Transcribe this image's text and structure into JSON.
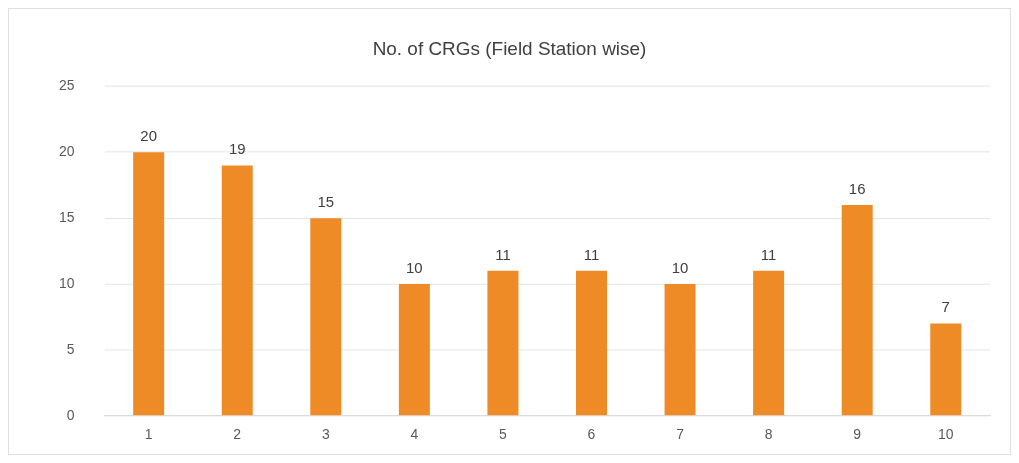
{
  "chart_data": {
    "type": "bar",
    "title": "No. of CRGs (Field Station wise)",
    "categories": [
      "1",
      "2",
      "3",
      "4",
      "5",
      "6",
      "7",
      "8",
      "9",
      "10"
    ],
    "values": [
      20,
      19,
      15,
      10,
      11,
      11,
      10,
      11,
      16,
      7
    ],
    "color": "#ee8b26",
    "ylim": [
      0,
      25
    ],
    "yticks": [
      0,
      5,
      10,
      15,
      20,
      25
    ],
    "grid": "y",
    "data_labels": true,
    "legend": false
  }
}
